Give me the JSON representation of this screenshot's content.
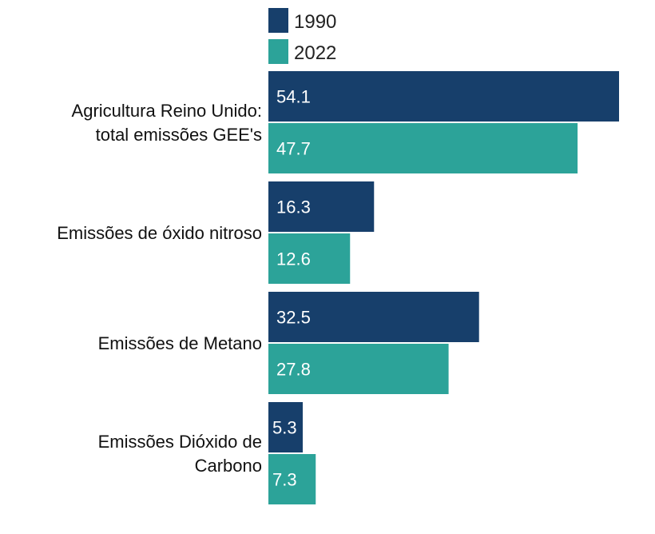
{
  "chart_data": {
    "type": "bar",
    "orientation": "horizontal",
    "title": "",
    "xlabel": "",
    "ylabel": "",
    "xlim": [
      0,
      55
    ],
    "grid": false,
    "legend_position": "top",
    "categories": [
      [
        "Agricultura Reino Unido:",
        "total emissões GEE's"
      ],
      [
        "Emissões de óxido nitroso"
      ],
      [
        "Emissões de Metano"
      ],
      [
        "Emissões Dióxido de",
        "Carbono"
      ]
    ],
    "series": [
      {
        "name": "1990",
        "color": "#173f6b",
        "values": [
          54.1,
          16.3,
          32.5,
          5.3
        ]
      },
      {
        "name": "2022",
        "color": "#2ca399",
        "values": [
          47.7,
          12.6,
          27.8,
          7.3
        ]
      }
    ]
  }
}
